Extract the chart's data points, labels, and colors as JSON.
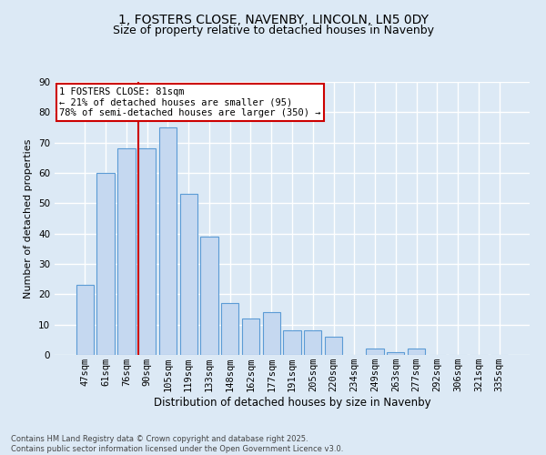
{
  "title": "1, FOSTERS CLOSE, NAVENBY, LINCOLN, LN5 0DY",
  "subtitle": "Size of property relative to detached houses in Navenby",
  "xlabel": "Distribution of detached houses by size in Navenby",
  "ylabel": "Number of detached properties",
  "bins": [
    "47sqm",
    "61sqm",
    "76sqm",
    "90sqm",
    "105sqm",
    "119sqm",
    "133sqm",
    "148sqm",
    "162sqm",
    "177sqm",
    "191sqm",
    "205sqm",
    "220sqm",
    "234sqm",
    "249sqm",
    "263sqm",
    "277sqm",
    "292sqm",
    "306sqm",
    "321sqm",
    "335sqm"
  ],
  "values": [
    23,
    60,
    68,
    68,
    75,
    53,
    39,
    17,
    12,
    14,
    8,
    8,
    6,
    0,
    2,
    1,
    2,
    0,
    0,
    0,
    0
  ],
  "bar_color": "#c5d8f0",
  "bar_edge_color": "#5b9bd5",
  "bg_color": "#dce9f5",
  "grid_color": "#ffffff",
  "vline_x": 2.57,
  "vline_color": "#cc0000",
  "annotation_text": "1 FOSTERS CLOSE: 81sqm\n← 21% of detached houses are smaller (95)\n78% of semi-detached houses are larger (350) →",
  "annotation_box_color": "#ffffff",
  "annotation_box_edge": "#cc0000",
  "footer_text": "Contains HM Land Registry data © Crown copyright and database right 2025.\nContains public sector information licensed under the Open Government Licence v3.0.",
  "ylim": [
    0,
    90
  ],
  "yticks": [
    0,
    10,
    20,
    30,
    40,
    50,
    60,
    70,
    80,
    90
  ],
  "title_fontsize": 10,
  "subtitle_fontsize": 9,
  "ylabel_fontsize": 8,
  "xlabel_fontsize": 8.5,
  "tick_fontsize": 7.5,
  "annot_fontsize": 7.5,
  "footer_fontsize": 6
}
